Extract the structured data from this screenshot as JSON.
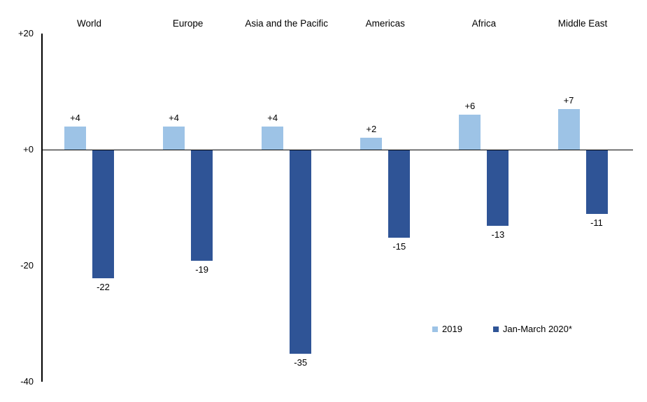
{
  "chart_data": {
    "type": "bar",
    "title": "",
    "xlabel": "",
    "ylabel": "",
    "categories": [
      "World",
      "Europe",
      "Asia and the Pacific",
      "Americas",
      "Africa",
      "Middle East"
    ],
    "series": [
      {
        "name": "2019",
        "color": "#9DC3E6",
        "values": [
          4,
          4,
          4,
          2,
          6,
          7
        ],
        "value_labels": [
          "+4",
          "+4",
          "+4",
          "+2",
          "+6",
          "+7"
        ]
      },
      {
        "name": "Jan-March 2020*",
        "color": "#2F5496",
        "values": [
          -22,
          -19,
          -35,
          -15,
          -13,
          -11
        ],
        "value_labels": [
          "-22",
          "-19",
          "-35",
          "-15",
          "-13",
          "-11"
        ]
      }
    ],
    "y_axis": {
      "ylim": [
        -40,
        20
      ],
      "ticks": [
        {
          "value": 20,
          "label": "+20"
        },
        {
          "value": 0,
          "label": "+0"
        },
        {
          "value": -20,
          "label": "-20"
        },
        {
          "value": -40,
          "label": "-40"
        }
      ]
    },
    "grid": false,
    "legend_position": "inside-lower-right",
    "axis_color": "#000000",
    "text_color": "#000000",
    "background_color": "#FFFFFF"
  }
}
